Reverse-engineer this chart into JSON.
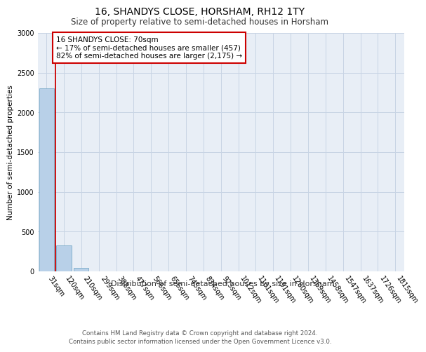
{
  "title": "16, SHANDYS CLOSE, HORSHAM, RH12 1TY",
  "subtitle": "Size of property relative to semi-detached houses in Horsham",
  "xlabel": "Distribution of semi-detached houses by size in Horsham",
  "ylabel": "Number of semi-detached properties",
  "categories": [
    "31sqm",
    "120sqm",
    "210sqm",
    "299sqm",
    "388sqm",
    "477sqm",
    "566sqm",
    "656sqm",
    "745sqm",
    "834sqm",
    "923sqm",
    "1012sqm",
    "1101sqm",
    "1191sqm",
    "1280sqm",
    "1369sqm",
    "1458sqm",
    "1547sqm",
    "1637sqm",
    "1726sqm",
    "1815sqm"
  ],
  "values": [
    2300,
    330,
    40,
    0,
    0,
    0,
    0,
    0,
    0,
    0,
    0,
    0,
    0,
    0,
    0,
    0,
    0,
    0,
    0,
    0,
    0
  ],
  "bar_color": "#b8d0e8",
  "bar_edge_color": "#7aaac8",
  "grid_color": "#c8d4e4",
  "background_color": "#e8eef6",
  "annotation_text": "16 SHANDYS CLOSE: 70sqm\n← 17% of semi-detached houses are smaller (457)\n82% of semi-detached houses are larger (2,175) →",
  "annotation_box_facecolor": "#ffffff",
  "annotation_border_color": "#cc0000",
  "red_line_x": 0.5,
  "ylim": [
    0,
    3000
  ],
  "yticks": [
    0,
    500,
    1000,
    1500,
    2000,
    2500,
    3000
  ],
  "footer_line1": "Contains HM Land Registry data © Crown copyright and database right 2024.",
  "footer_line2": "Contains public sector information licensed under the Open Government Licence v3.0.",
  "title_fontsize": 10,
  "subtitle_fontsize": 8.5,
  "tick_fontsize": 7,
  "ylabel_fontsize": 7.5,
  "xlabel_fontsize": 8,
  "annotation_fontsize": 7.5,
  "footer_fontsize": 6.2
}
